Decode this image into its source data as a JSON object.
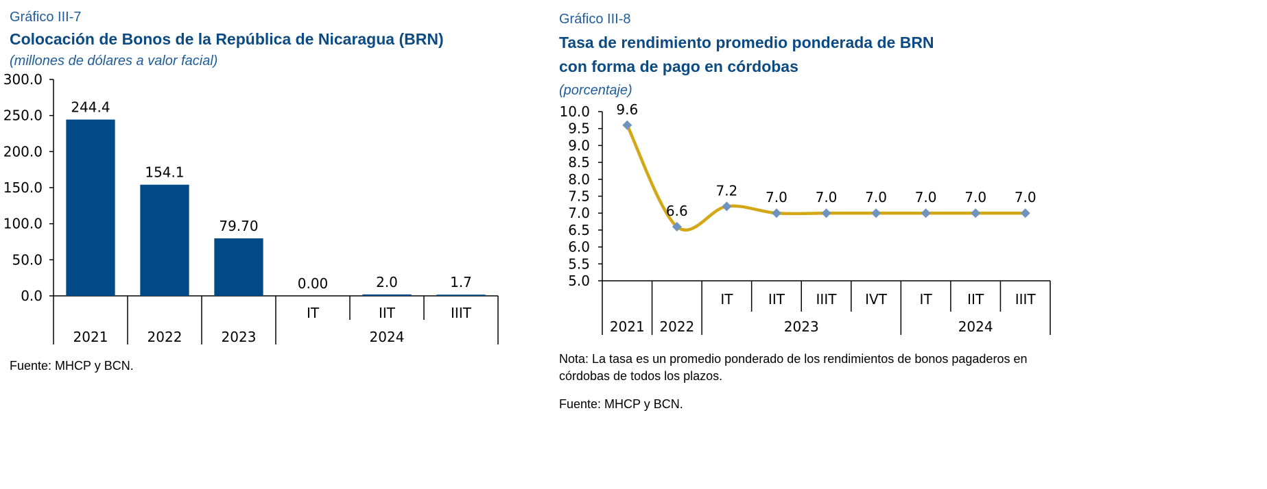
{
  "charts": [
    {
      "label": "Gráfico III-7",
      "title": "Colocación de Bonos de la República de Nicaragua (BRN)",
      "unit": "(millones de dólares a valor facial)",
      "source": "Fuente: MHCP y BCN."
    },
    {
      "label": "Gráfico III-8",
      "title_line1": "Tasa de rendimiento promedio ponderada de BRN",
      "title_line2": "con forma de pago en córdobas",
      "unit": "(porcentaje)",
      "note_line1": "Nota:  La tasa es un promedio ponderado de los rendimientos de bonos pagaderos en",
      "note_line2": "córdobas de todos los plazos.",
      "source": "Fuente: MHCP y BCN."
    }
  ],
  "chart_data": [
    {
      "type": "bar",
      "title": "Colocación de Bonos de la República de Nicaragua (BRN)",
      "ylabel": "(millones de dólares a valor facial)",
      "ylim": [
        0,
        300
      ],
      "yticks": [
        "0.0",
        "50.0",
        "100.0",
        "150.0",
        "200.0",
        "250.0",
        "300.0"
      ],
      "categories": [
        "2021",
        "2022",
        "2023",
        "IT",
        "IIT",
        "IIIT"
      ],
      "group_labels": [
        {
          "label": "2021",
          "span": [
            0,
            0
          ]
        },
        {
          "label": "2022",
          "span": [
            1,
            1
          ]
        },
        {
          "label": "2023",
          "span": [
            2,
            2
          ]
        },
        {
          "label": "2024",
          "span": [
            3,
            5
          ]
        }
      ],
      "values": [
        244.4,
        154.1,
        79.7,
        0.0,
        2.0,
        1.7
      ],
      "value_labels": [
        "244.4",
        "154.1",
        "79.70",
        "0.00",
        "2.0",
        "1.7"
      ],
      "color": "#004b87",
      "grid": false
    },
    {
      "type": "line",
      "title": "Tasa de rendimiento promedio ponderada de BRN con forma de pago en córdobas",
      "ylabel": "(porcentaje)",
      "ylim": [
        5.0,
        10.0
      ],
      "yticks": [
        "5.0",
        "5.5",
        "6.0",
        "6.5",
        "7.0",
        "7.5",
        "8.0",
        "8.5",
        "9.0",
        "9.5",
        "10.0"
      ],
      "categories": [
        "2021",
        "2022",
        "IT",
        "IIT",
        "IIIT",
        "IVT",
        "IT",
        "IIT",
        "IIIT"
      ],
      "group_labels": [
        {
          "label": "2021",
          "span": [
            0,
            0
          ]
        },
        {
          "label": "2022",
          "span": [
            1,
            1
          ]
        },
        {
          "label": "2023",
          "span": [
            2,
            5
          ]
        },
        {
          "label": "2024",
          "span": [
            6,
            8
          ]
        }
      ],
      "values": [
        9.6,
        6.6,
        7.2,
        7.0,
        7.0,
        7.0,
        7.0,
        7.0,
        7.0
      ],
      "value_labels": [
        "9.6",
        "6.6",
        "7.2",
        "7.0",
        "7.0",
        "7.0",
        "7.0",
        "7.0",
        "7.0"
      ],
      "line_color": "#d4a717",
      "marker_color": "#6f93bd",
      "grid": false
    }
  ]
}
